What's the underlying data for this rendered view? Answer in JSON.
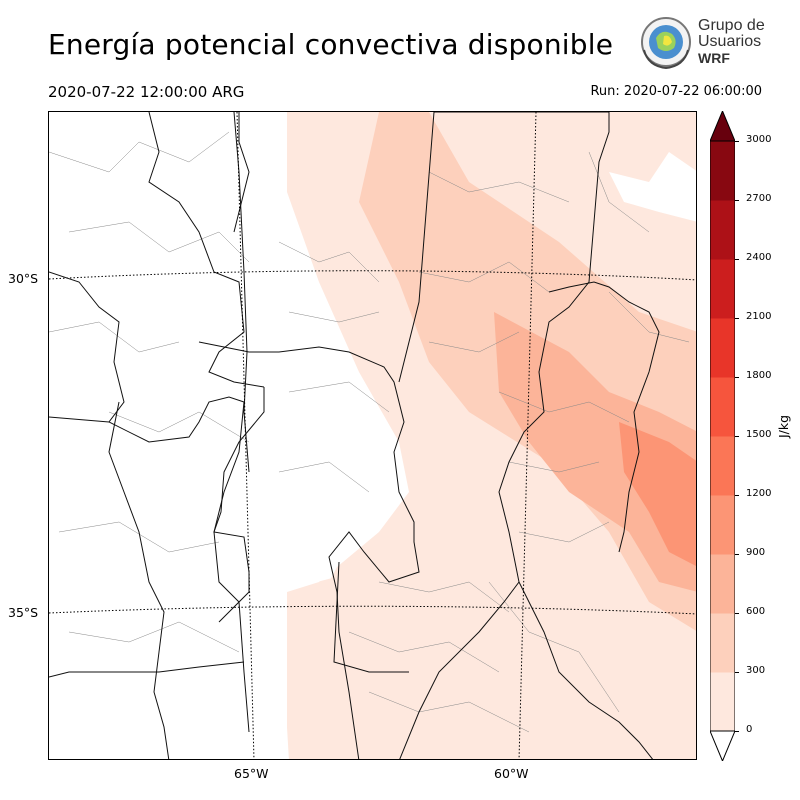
{
  "header": {
    "title": "Energía potencial convectiva disponible",
    "valid_time": "2020-07-22 12:00:00 ARG",
    "run_time": "Run: 2020-07-22 06:00:00"
  },
  "logo": {
    "line1": "Grupo de",
    "line2": "Usuarios",
    "line3": "WRF"
  },
  "map": {
    "lat_labels": [
      "30°S",
      "35°S"
    ],
    "lon_labels": [
      "65°W",
      "60°W"
    ]
  },
  "colorbar": {
    "label": "J/kg",
    "ticks": [
      "0",
      "300",
      "600",
      "900",
      "1200",
      "1500",
      "1800",
      "2100",
      "2400",
      "2700",
      "3000"
    ],
    "colors": [
      "#fee8de",
      "#fdd0bc",
      "#fcb499",
      "#fc9575",
      "#fb7656",
      "#f6553d",
      "#e83529",
      "#cc1e1e",
      "#ad1117",
      "#880811",
      "#67000d"
    ],
    "extend": "both"
  }
}
